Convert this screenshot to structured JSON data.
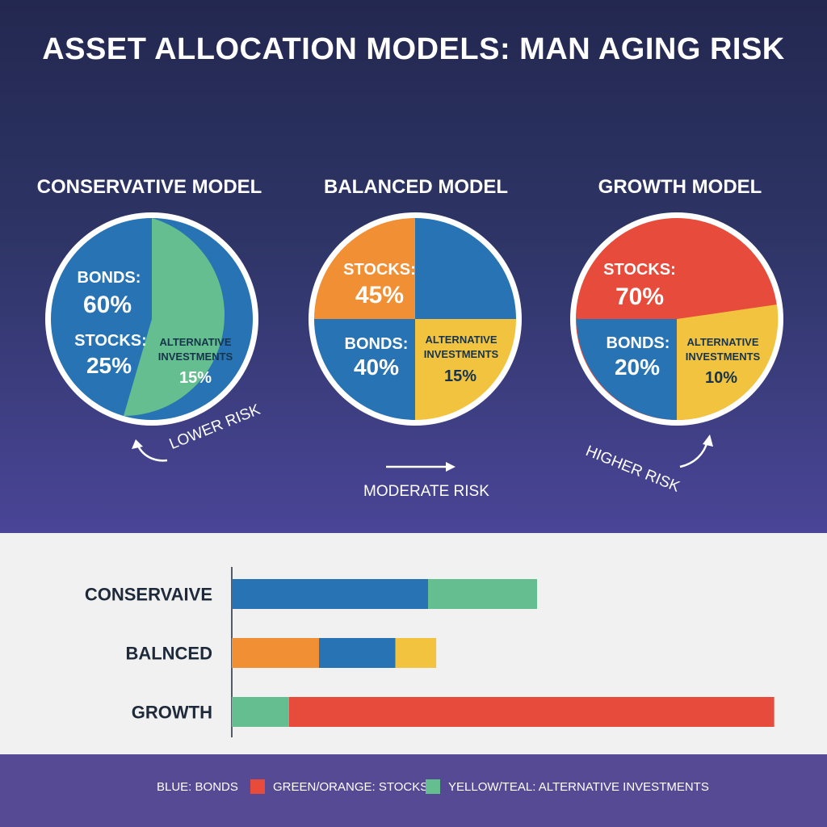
{
  "title": "ASSET ALLOCATION MODELS: MAN AGING RISK",
  "colors": {
    "bonds": "#2773b4",
    "stocks_conservative": "#64be8f",
    "stocks_balanced": "#f08f34",
    "stocks_growth": "#e64b3b",
    "alternative": "#f2c33e",
    "alternative_conservative": "#64be8f"
  },
  "chart_data": [
    {
      "type": "pie",
      "title": "CONSERVATIVE MODEL",
      "slices": [
        {
          "name": "BONDS:",
          "value": 60,
          "label": "60%"
        },
        {
          "name": "STOCKS:",
          "value": 25,
          "label": "25%"
        },
        {
          "name": "ALTERNATIVE INVESTMENTS",
          "value": 15,
          "label": "15%"
        }
      ],
      "risk_label": "LOWER RISK"
    },
    {
      "type": "pie",
      "title": "BALANCED MODEL",
      "slices": [
        {
          "name": "STOCKS:",
          "value": 45,
          "label": "45%"
        },
        {
          "name": "BONDS:",
          "value": 40,
          "label": "40%"
        },
        {
          "name": "ALTERNATIVE INVESTMENTS",
          "value": 15,
          "label": "15%"
        }
      ],
      "risk_label": "MODERATE RISK"
    },
    {
      "type": "pie",
      "title": "GROWTH MODEL",
      "slices": [
        {
          "name": "STOCKS:",
          "value": 70,
          "label": "70%"
        },
        {
          "name": "BONDS:",
          "value": 20,
          "label": "20%"
        },
        {
          "name": "ALTERNATIVE INVESTMENTS",
          "value": 10,
          "label": "10%"
        }
      ],
      "risk_label": "HIGHER RISK"
    },
    {
      "type": "bar",
      "orientation": "horizontal",
      "stacked": true,
      "categories": [
        "CONSERVAIVE",
        "BALNCED",
        "GROWTH"
      ],
      "rows": [
        {
          "segments": [
            {
              "kind": "bonds",
              "value": 36
            },
            {
              "kind": "stocks_conservative",
              "value": 20
            }
          ]
        },
        {
          "segments": [
            {
              "kind": "stocks_balanced",
              "value": 16
            },
            {
              "kind": "bonds",
              "value": 14
            },
            {
              "kind": "alternative",
              "value": 7.5
            }
          ]
        },
        {
          "segments": [
            {
              "kind": "alternative_conservative",
              "value": 10.5
            },
            {
              "kind": "stocks_growth",
              "value": 89
            }
          ]
        }
      ],
      "xlim": [
        0,
        100
      ]
    }
  ],
  "legend": [
    {
      "label": "BLUE: BONDS",
      "swatch": ""
    },
    {
      "label": "GREEN/ORANGE: STOCKS",
      "swatch": "#e64b3b"
    },
    {
      "label": "YELLOW/TEAL: ALTERNATIVE INVESTMENTS",
      "swatch": "#64be8f"
    }
  ]
}
